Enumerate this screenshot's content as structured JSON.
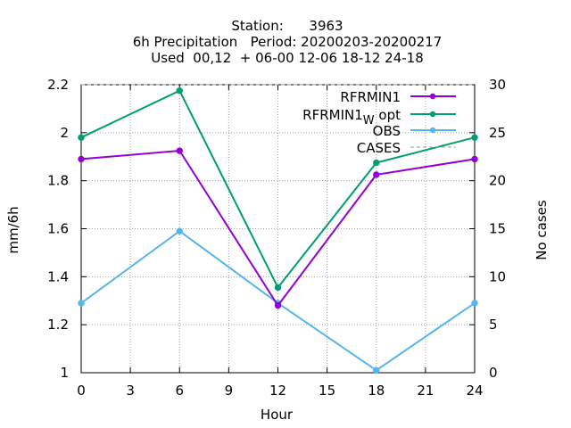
{
  "chart_data": {
    "type": "line",
    "title_lines": [
      "Station:      3963",
      "6h Precipitation   Period: 20200203-20200217",
      "Used  00,12  + 06-00 12-06 18-12 24-18"
    ],
    "xlabel": "Hour",
    "ylabel": "mm/6h",
    "y2label": "No cases",
    "x": [
      0,
      6,
      12,
      18,
      24
    ],
    "xlim": [
      0,
      24
    ],
    "ylim": [
      1,
      2.2
    ],
    "y2lim": [
      0,
      30
    ],
    "x_ticks": [
      "0",
      "3",
      "6",
      "9",
      "12",
      "15",
      "18",
      "21",
      "24"
    ],
    "x_tick_values": [
      0,
      3,
      6,
      9,
      12,
      15,
      18,
      21,
      24
    ],
    "y_ticks": [
      "1",
      "1.2",
      "1.4",
      "1.6",
      "1.8",
      "2",
      "2.2"
    ],
    "y_tick_values": [
      1,
      1.2,
      1.4,
      1.6,
      1.8,
      2,
      2.2
    ],
    "y2_ticks": [
      "0",
      "5",
      "10",
      "15",
      "20",
      "25",
      "30"
    ],
    "y2_tick_values": [
      0,
      5,
      10,
      15,
      20,
      25,
      30
    ],
    "grid": true,
    "legend_placement": "top-right",
    "series": [
      {
        "name": "RFRMIN1",
        "color": "#9400d3",
        "values": [
          1.89,
          1.925,
          1.28,
          1.825,
          1.89
        ],
        "axis": "y",
        "dashed": false
      },
      {
        "name_main": "RFRMIN1",
        "name_sub": "W",
        "name_suffix": " opt",
        "color": "#009e73",
        "values": [
          1.98,
          2.175,
          1.355,
          1.875,
          1.98
        ],
        "axis": "y",
        "dashed": false
      },
      {
        "name": "OBS",
        "color": "#56b4e9",
        "values": [
          1.29,
          1.59,
          1.29,
          1.01,
          1.29
        ],
        "axis": "y",
        "dashed": false
      },
      {
        "name": "CASES",
        "color": "#999999",
        "values": [
          30,
          30,
          30,
          30,
          30
        ],
        "axis": "y2",
        "dashed": true
      }
    ]
  }
}
